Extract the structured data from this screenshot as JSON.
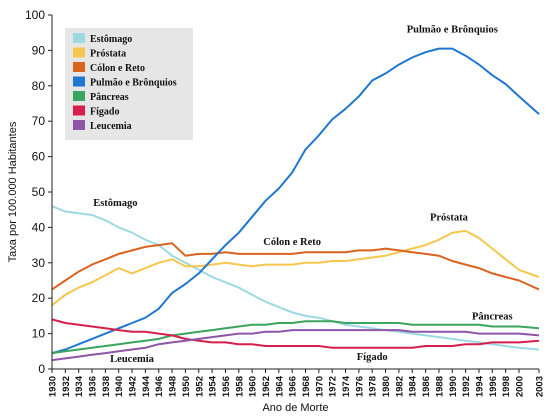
{
  "chart_data": {
    "type": "line",
    "xlabel": "Ano de Morte",
    "ylabel": "Taxa por 100.000 Habitantes",
    "xlim": [
      1930,
      2003
    ],
    "ylim": [
      0,
      100
    ],
    "y_ticks": [
      0,
      10,
      20,
      30,
      40,
      50,
      60,
      70,
      80,
      90,
      100
    ],
    "x_ticks": [
      "1930",
      "1932",
      "1934",
      "1936",
      "1938",
      "1940",
      "1942",
      "1944",
      "1946",
      "1948",
      "1950",
      "1952",
      "1954",
      "1956",
      "1958",
      "1960",
      "1962",
      "1964",
      "1966",
      "1968",
      "1970",
      "1972",
      "1974",
      "1976",
      "1978",
      "1980",
      "1982",
      "1984",
      "1986",
      "1988",
      "1990",
      "1992",
      "1994",
      "1996",
      "1998",
      "2000",
      "2003"
    ],
    "grid": false,
    "legend": "top-left",
    "series": [
      {
        "name": "Estômago",
        "color": "#9dd9e3",
        "points": [
          [
            1930,
            46
          ],
          [
            1932,
            44.5
          ],
          [
            1934,
            44
          ],
          [
            1936,
            43.5
          ],
          [
            1938,
            42
          ],
          [
            1940,
            40
          ],
          [
            1942,
            38.5
          ],
          [
            1944,
            36.5
          ],
          [
            1946,
            35
          ],
          [
            1948,
            32
          ],
          [
            1950,
            30
          ],
          [
            1952,
            28
          ],
          [
            1954,
            26
          ],
          [
            1956,
            24.5
          ],
          [
            1958,
            23
          ],
          [
            1960,
            21
          ],
          [
            1962,
            19
          ],
          [
            1964,
            17.5
          ],
          [
            1966,
            16
          ],
          [
            1968,
            15
          ],
          [
            1970,
            14.5
          ],
          [
            1972,
            13.5
          ],
          [
            1974,
            12.5
          ],
          [
            1976,
            12
          ],
          [
            1978,
            11.5
          ],
          [
            1980,
            11
          ],
          [
            1982,
            10.5
          ],
          [
            1984,
            10
          ],
          [
            1986,
            9.5
          ],
          [
            1988,
            9
          ],
          [
            1990,
            8.5
          ],
          [
            1992,
            8
          ],
          [
            1994,
            7.5
          ],
          [
            1996,
            7
          ],
          [
            1998,
            6.5
          ],
          [
            2000,
            6
          ],
          [
            2003,
            5.5
          ]
        ]
      },
      {
        "name": "Próstata",
        "color": "#f5c74e",
        "points": [
          [
            1930,
            18
          ],
          [
            1932,
            21
          ],
          [
            1934,
            23
          ],
          [
            1936,
            24.5
          ],
          [
            1938,
            26.5
          ],
          [
            1940,
            28.5
          ],
          [
            1942,
            27
          ],
          [
            1944,
            28.5
          ],
          [
            1946,
            30
          ],
          [
            1948,
            31
          ],
          [
            1950,
            29
          ],
          [
            1952,
            29
          ],
          [
            1954,
            29.5
          ],
          [
            1956,
            30
          ],
          [
            1958,
            29.5
          ],
          [
            1960,
            29
          ],
          [
            1962,
            29.5
          ],
          [
            1964,
            29.5
          ],
          [
            1966,
            29.5
          ],
          [
            1968,
            30
          ],
          [
            1970,
            30
          ],
          [
            1972,
            30.5
          ],
          [
            1974,
            30.5
          ],
          [
            1976,
            31
          ],
          [
            1978,
            31.5
          ],
          [
            1980,
            32
          ],
          [
            1982,
            33
          ],
          [
            1984,
            34
          ],
          [
            1986,
            35
          ],
          [
            1988,
            36.5
          ],
          [
            1990,
            38.5
          ],
          [
            1992,
            39
          ],
          [
            1994,
            37
          ],
          [
            1996,
            34
          ],
          [
            1998,
            31
          ],
          [
            2000,
            28
          ],
          [
            2003,
            26
          ]
        ]
      },
      {
        "name": "Cólon e Reto",
        "color": "#d8641f",
        "points": [
          [
            1930,
            22.5
          ],
          [
            1932,
            25
          ],
          [
            1934,
            27.5
          ],
          [
            1936,
            29.5
          ],
          [
            1938,
            31
          ],
          [
            1940,
            32.5
          ],
          [
            1942,
            33.5
          ],
          [
            1944,
            34.5
          ],
          [
            1946,
            35
          ],
          [
            1948,
            35.5
          ],
          [
            1950,
            32
          ],
          [
            1952,
            32.5
          ],
          [
            1954,
            32.5
          ],
          [
            1956,
            33
          ],
          [
            1958,
            32.5
          ],
          [
            1960,
            32.5
          ],
          [
            1962,
            32.5
          ],
          [
            1964,
            32.5
          ],
          [
            1966,
            32.5
          ],
          [
            1968,
            33
          ],
          [
            1970,
            33
          ],
          [
            1972,
            33
          ],
          [
            1974,
            33
          ],
          [
            1976,
            33.5
          ],
          [
            1978,
            33.5
          ],
          [
            1980,
            34
          ],
          [
            1982,
            33.5
          ],
          [
            1984,
            33
          ],
          [
            1986,
            32.5
          ],
          [
            1988,
            32
          ],
          [
            1990,
            30.5
          ],
          [
            1992,
            29.5
          ],
          [
            1994,
            28.5
          ],
          [
            1996,
            27
          ],
          [
            1998,
            26
          ],
          [
            2000,
            25
          ],
          [
            2003,
            22.5
          ]
        ]
      },
      {
        "name": "Pulmão e Brônquios",
        "color": "#1f77d1",
        "points": [
          [
            1930,
            4.5
          ],
          [
            1932,
            5.5
          ],
          [
            1934,
            7
          ],
          [
            1936,
            8.5
          ],
          [
            1938,
            10
          ],
          [
            1940,
            11.5
          ],
          [
            1942,
            13
          ],
          [
            1944,
            14.5
          ],
          [
            1946,
            17
          ],
          [
            1948,
            21.5
          ],
          [
            1950,
            24
          ],
          [
            1952,
            27
          ],
          [
            1954,
            31
          ],
          [
            1956,
            35
          ],
          [
            1958,
            38.5
          ],
          [
            1960,
            43
          ],
          [
            1962,
            47.5
          ],
          [
            1964,
            51
          ],
          [
            1966,
            55.5
          ],
          [
            1968,
            62
          ],
          [
            1970,
            66
          ],
          [
            1972,
            70.5
          ],
          [
            1974,
            73.5
          ],
          [
            1976,
            77
          ],
          [
            1978,
            81.5
          ],
          [
            1980,
            83.5
          ],
          [
            1982,
            86
          ],
          [
            1984,
            88
          ],
          [
            1986,
            89.5
          ],
          [
            1988,
            90.5
          ],
          [
            1990,
            90.5
          ],
          [
            1992,
            88.5
          ],
          [
            1994,
            86
          ],
          [
            1996,
            83
          ],
          [
            1998,
            80.5
          ],
          [
            2000,
            77
          ],
          [
            2003,
            72
          ]
        ]
      },
      {
        "name": "Pâncreas",
        "color": "#3aa55f",
        "points": [
          [
            1930,
            4.5
          ],
          [
            1932,
            5
          ],
          [
            1934,
            5.5
          ],
          [
            1936,
            6
          ],
          [
            1938,
            6.5
          ],
          [
            1940,
            7
          ],
          [
            1942,
            7.5
          ],
          [
            1944,
            8
          ],
          [
            1946,
            8.5
          ],
          [
            1948,
            9.5
          ],
          [
            1950,
            10
          ],
          [
            1952,
            10.5
          ],
          [
            1954,
            11
          ],
          [
            1956,
            11.5
          ],
          [
            1958,
            12
          ],
          [
            1960,
            12.5
          ],
          [
            1962,
            12.5
          ],
          [
            1964,
            13
          ],
          [
            1966,
            13
          ],
          [
            1968,
            13.5
          ],
          [
            1970,
            13.5
          ],
          [
            1972,
            13.5
          ],
          [
            1974,
            13
          ],
          [
            1976,
            13
          ],
          [
            1978,
            13
          ],
          [
            1980,
            13
          ],
          [
            1982,
            13
          ],
          [
            1984,
            12.5
          ],
          [
            1986,
            12.5
          ],
          [
            1988,
            12.5
          ],
          [
            1990,
            12.5
          ],
          [
            1992,
            12.5
          ],
          [
            1994,
            12.5
          ],
          [
            1996,
            12
          ],
          [
            1998,
            12
          ],
          [
            2000,
            12
          ],
          [
            2003,
            11.5
          ]
        ]
      },
      {
        "name": "Fígado",
        "color": "#d61f4c",
        "points": [
          [
            1930,
            14
          ],
          [
            1932,
            13
          ],
          [
            1934,
            12.5
          ],
          [
            1936,
            12
          ],
          [
            1938,
            11.5
          ],
          [
            1940,
            11
          ],
          [
            1942,
            10.5
          ],
          [
            1944,
            10.5
          ],
          [
            1946,
            10
          ],
          [
            1948,
            9.5
          ],
          [
            1950,
            8.5
          ],
          [
            1952,
            8
          ],
          [
            1954,
            7.5
          ],
          [
            1956,
            7.5
          ],
          [
            1958,
            7
          ],
          [
            1960,
            7
          ],
          [
            1962,
            6.5
          ],
          [
            1964,
            6.5
          ],
          [
            1966,
            6.5
          ],
          [
            1968,
            6.5
          ],
          [
            1970,
            6.5
          ],
          [
            1972,
            6
          ],
          [
            1974,
            6
          ],
          [
            1976,
            6
          ],
          [
            1978,
            6
          ],
          [
            1980,
            6
          ],
          [
            1982,
            6
          ],
          [
            1984,
            6
          ],
          [
            1986,
            6.5
          ],
          [
            1988,
            6.5
          ],
          [
            1990,
            6.5
          ],
          [
            1992,
            7
          ],
          [
            1994,
            7
          ],
          [
            1996,
            7.5
          ],
          [
            1998,
            7.5
          ],
          [
            2000,
            7.5
          ],
          [
            2003,
            8
          ]
        ]
      },
      {
        "name": "Leucemia",
        "color": "#8e55a8",
        "points": [
          [
            1930,
            2.5
          ],
          [
            1932,
            3
          ],
          [
            1934,
            3.5
          ],
          [
            1936,
            4
          ],
          [
            1938,
            4.5
          ],
          [
            1940,
            5
          ],
          [
            1942,
            5.5
          ],
          [
            1944,
            6
          ],
          [
            1946,
            7
          ],
          [
            1948,
            7.5
          ],
          [
            1950,
            8
          ],
          [
            1952,
            8.5
          ],
          [
            1954,
            9
          ],
          [
            1956,
            9.5
          ],
          [
            1958,
            10
          ],
          [
            1960,
            10
          ],
          [
            1962,
            10.5
          ],
          [
            1964,
            10.5
          ],
          [
            1966,
            11
          ],
          [
            1968,
            11
          ],
          [
            1970,
            11
          ],
          [
            1972,
            11
          ],
          [
            1974,
            11
          ],
          [
            1976,
            11
          ],
          [
            1978,
            11
          ],
          [
            1980,
            11
          ],
          [
            1982,
            11
          ],
          [
            1984,
            10.5
          ],
          [
            1986,
            10.5
          ],
          [
            1988,
            10.5
          ],
          [
            1990,
            10.5
          ],
          [
            1992,
            10.5
          ],
          [
            1994,
            10
          ],
          [
            1996,
            10
          ],
          [
            1998,
            10
          ],
          [
            2000,
            10
          ],
          [
            2003,
            9.5
          ]
        ]
      }
    ],
    "annotations": [
      {
        "text": "Estômago",
        "x": 1939.5,
        "y": 46
      },
      {
        "text": "Pulmão e Brônquios",
        "x": 1990,
        "y": 95
      },
      {
        "text": "Próstata",
        "x": 1989.5,
        "y": 42
      },
      {
        "text": "Cólon e Reto",
        "x": 1966,
        "y": 35
      },
      {
        "text": "Pâncreas",
        "x": 1996,
        "y": 14
      },
      {
        "text": "Leucemia",
        "x": 1942,
        "y": 2
      },
      {
        "text": "Fígado",
        "x": 1978,
        "y": 2.5
      }
    ]
  }
}
